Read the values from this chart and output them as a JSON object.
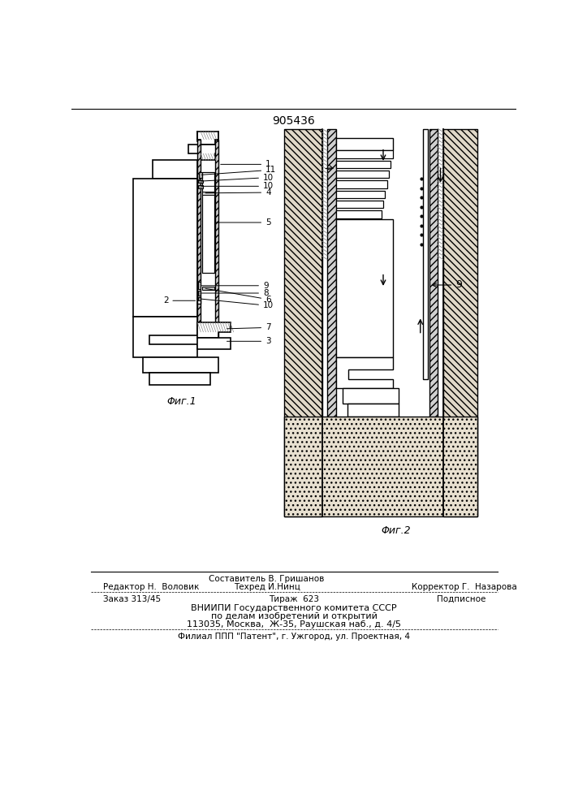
{
  "patent_number": "905436",
  "fig1_label": "Φиг.1",
  "fig2_label": "Φиг.2",
  "editor_line": "Редактор Н.  Воловик",
  "composer_line": "Составитель В. Гришанов",
  "techred_line": "Техред И.Нинц",
  "corrector_line": "Корректор Г.  Назарова",
  "order_line": "Заказ 313/45",
  "tirazh_line": "Тираж  623",
  "podpisnoe_line": "Подписное",
  "vniipи_line": "ВНИИПИ Государственного комитета СССР",
  "po_delam_line": "по делам изобретений и открытий",
  "address_line": "113035, Москва,  Ж-35, Раушская наб., д. 4/5",
  "filial_line": "Филиал ППП \"Патент\", г. Ужгород, ул. Проектная, 4",
  "bg_color": "#ffffff"
}
